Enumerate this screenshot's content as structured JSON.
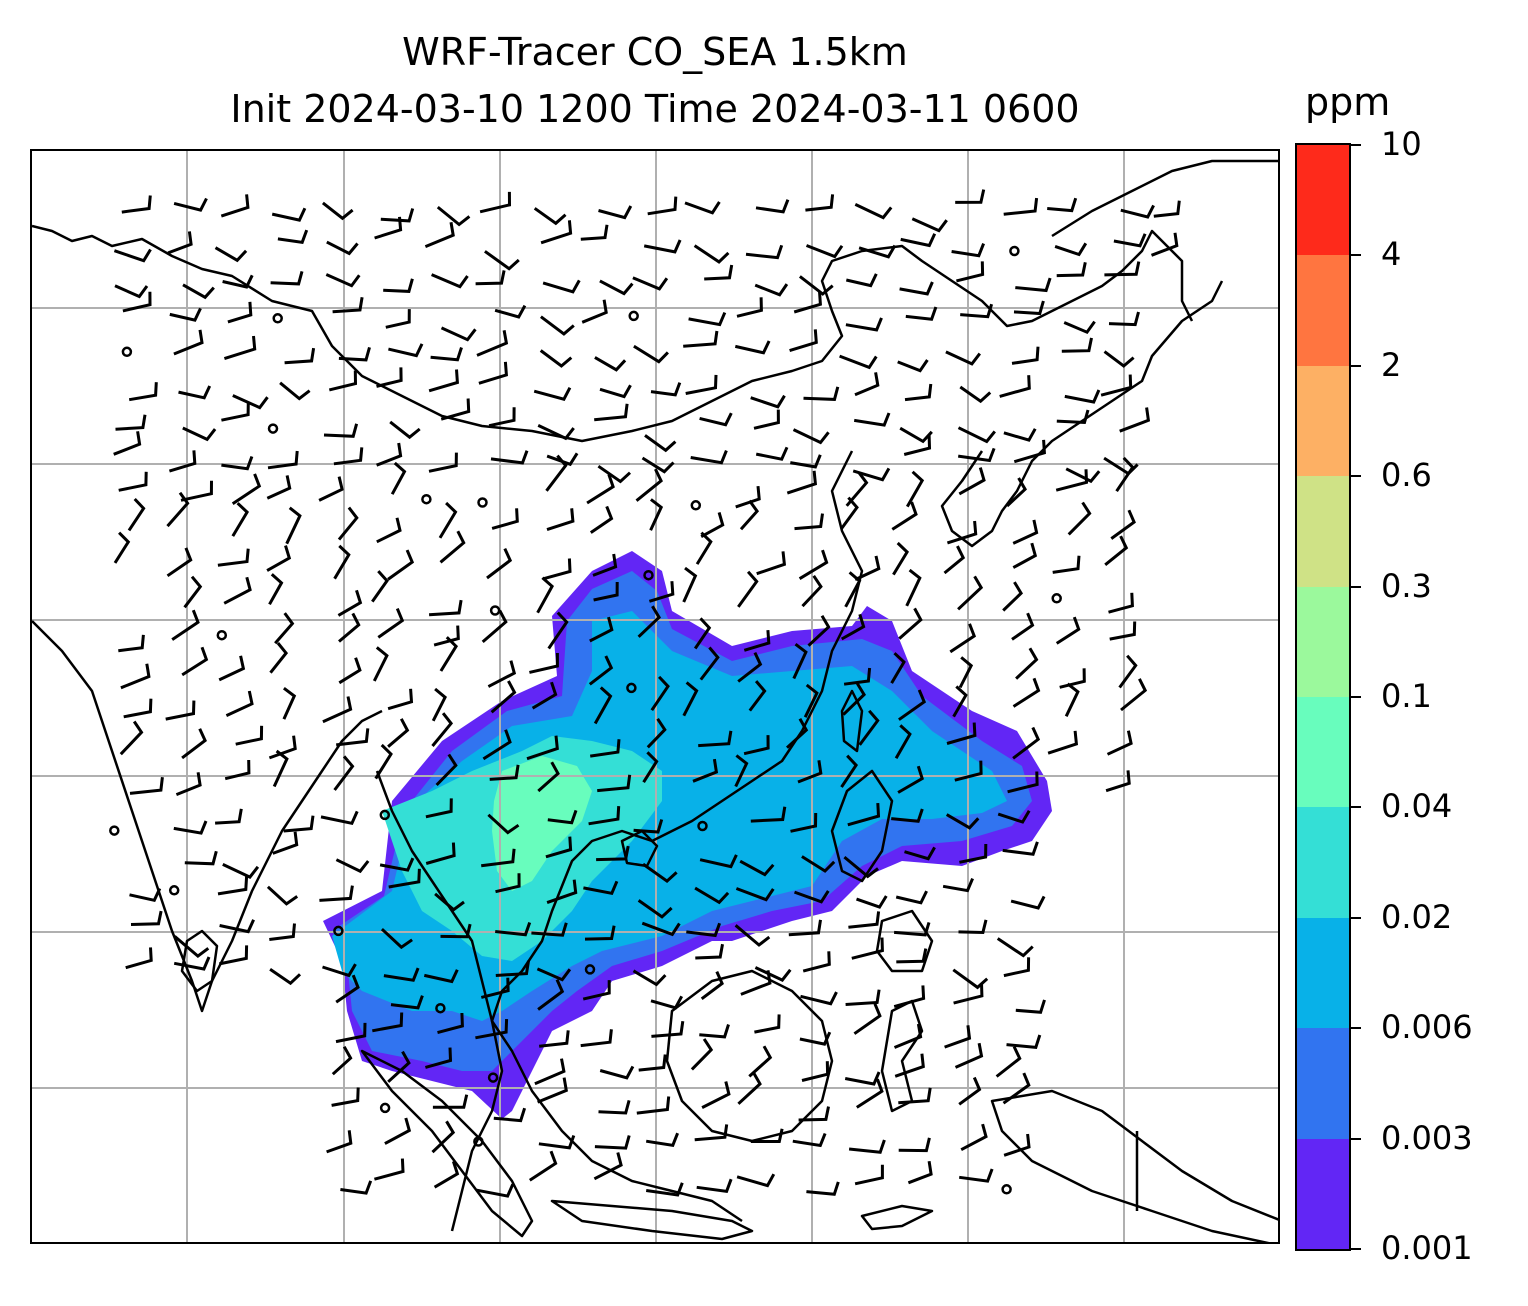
{
  "title": {
    "line1": "WRF-Tracer CO_SEA 1.5km",
    "line2": "Init 2024-03-10 1200 Time 2024-03-11 0600"
  },
  "colorbar": {
    "unit": "ppm",
    "levels": [
      "0.001",
      "0.003",
      "0.006",
      "0.02",
      "0.04",
      "0.1",
      "0.3",
      "0.6",
      "2",
      "4",
      "10"
    ],
    "colors": [
      "#6226f5",
      "#3174f0",
      "#08b1e8",
      "#34dfd6",
      "#68fdbd",
      "#9bf99c",
      "#cfe286",
      "#fdb064",
      "#ff7540",
      "#fe2a1b"
    ]
  },
  "map": {
    "gridlines": true,
    "gridline_color": "#b0b0b0",
    "coastline_color": "#000000",
    "field": "CO_SEA tracer concentration",
    "overlay": "wind-barbs"
  }
}
